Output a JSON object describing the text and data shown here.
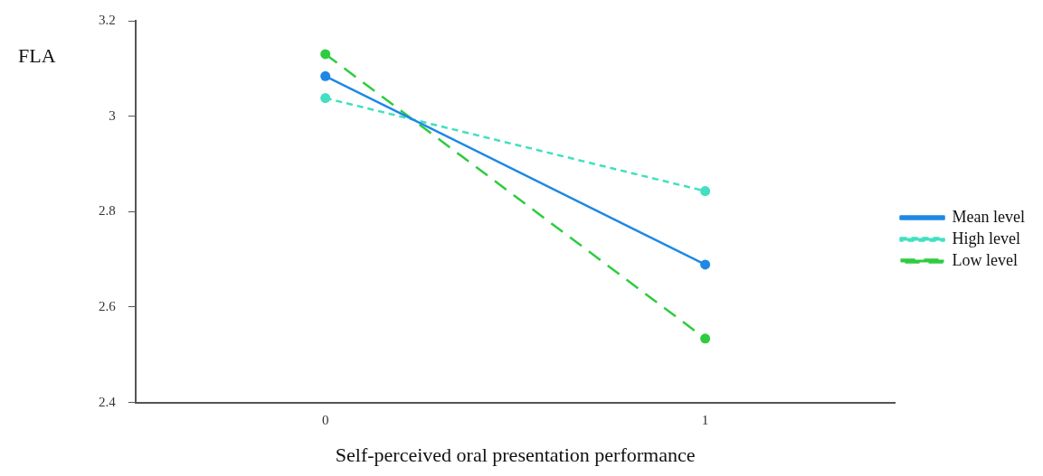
{
  "chart_data": {
    "type": "line",
    "xlabel": "Self-perceived oral presentation performance",
    "ylabel": "FLA",
    "x": [
      0,
      1
    ],
    "series": [
      {
        "name": "Mean level",
        "color": "#1e88e5",
        "values": [
          3.084,
          2.689
        ],
        "line_style": "solid"
      },
      {
        "name": "High level",
        "color": "#40e0c0",
        "values": [
          3.038,
          2.843
        ],
        "line_style": "dashed"
      },
      {
        "name": "Low level",
        "color": "#2ecc40",
        "values": [
          3.13,
          2.534
        ],
        "line_style": "dashed"
      }
    ],
    "xlim": [
      -0.5,
      1.5
    ],
    "xticks": [
      0,
      1
    ],
    "ylim": [
      2.4,
      3.2
    ],
    "yticks": [
      2.4,
      2.6,
      2.8,
      3,
      3.2
    ],
    "grid": false,
    "legend": "right",
    "marker": "circle"
  }
}
